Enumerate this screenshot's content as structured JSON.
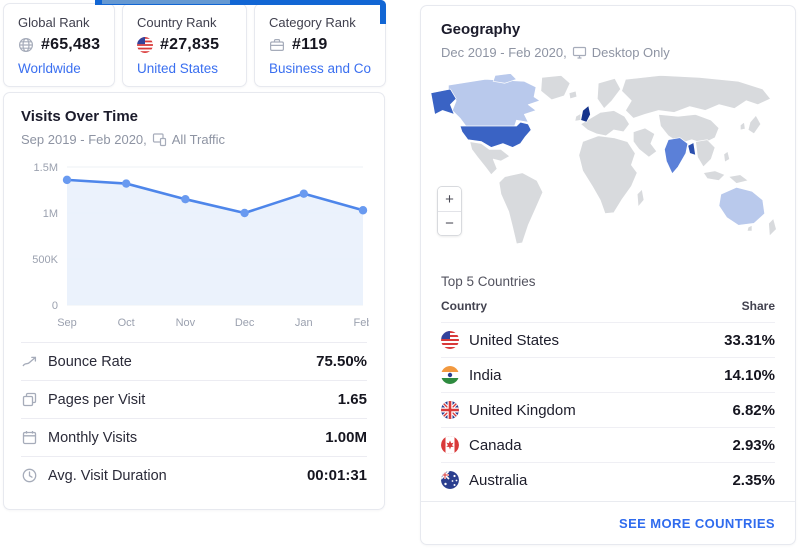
{
  "colors": {
    "accent_blue": "#1266d4",
    "link_blue": "#3a6ff0",
    "map_base": "#d8dadd",
    "map_dark": "#3a63c4",
    "map_medium": "#5b80d8",
    "map_light": "#b9c9ec"
  },
  "rank_cards": [
    {
      "label": "Global Rank",
      "value": "#65,483",
      "link": "Worldwide",
      "icon": "globe"
    },
    {
      "label": "Country Rank",
      "value": "#27,835",
      "link": "United States",
      "icon": "us-flag"
    },
    {
      "label": "Category Rank",
      "value": "#119",
      "link": "Business and Co...",
      "icon": "briefcase"
    }
  ],
  "visits_card": {
    "title": "Visits Over Time",
    "subtitle_range": "Sep 2019 - Feb 2020,",
    "subtitle_filter": "All Traffic",
    "metrics": [
      {
        "label": "Bounce Rate",
        "value": "75.50%",
        "icon": "bounce-arrow"
      },
      {
        "label": "Pages per Visit",
        "value": "1.65",
        "icon": "pages"
      },
      {
        "label": "Monthly Visits",
        "value": "1.00M",
        "icon": "calendar"
      },
      {
        "label": "Avg. Visit Duration",
        "value": "00:01:31",
        "icon": "clock"
      }
    ]
  },
  "chart_data": {
    "type": "line",
    "title": "Visits Over Time",
    "x": [
      "Sep",
      "Oct",
      "Nov",
      "Dec",
      "Jan",
      "Feb"
    ],
    "values": [
      1360000,
      1320000,
      1150000,
      1000000,
      1210000,
      1030000
    ],
    "ylim": [
      0,
      1500000
    ],
    "yticks": [
      {
        "v": 1500000,
        "label": "1.5M"
      },
      {
        "v": 1000000,
        "label": "1M"
      },
      {
        "v": 500000,
        "label": "500K"
      },
      {
        "v": 0,
        "label": "0"
      }
    ],
    "grid": true,
    "legend": "none",
    "line_color": "#4e86ea",
    "marker_color": "#699af0",
    "area_color": "#e9f1fc"
  },
  "geo_card": {
    "title": "Geography",
    "subtitle_range": "Dec 2019 - Feb 2020,",
    "subtitle_filter": "Desktop Only",
    "zoom_in": "+",
    "zoom_out": "−",
    "table_title": "Top 5 Countries",
    "col_country": "Country",
    "col_share": "Share",
    "rows": [
      {
        "name": "United States",
        "share": "33.31%",
        "flag": "us"
      },
      {
        "name": "India",
        "share": "14.10%",
        "flag": "in"
      },
      {
        "name": "United Kingdom",
        "share": "6.82%",
        "flag": "uk"
      },
      {
        "name": "Canada",
        "share": "2.93%",
        "flag": "ca"
      },
      {
        "name": "Australia",
        "share": "2.35%",
        "flag": "au"
      }
    ],
    "footer_link": "SEE MORE COUNTRIES"
  }
}
